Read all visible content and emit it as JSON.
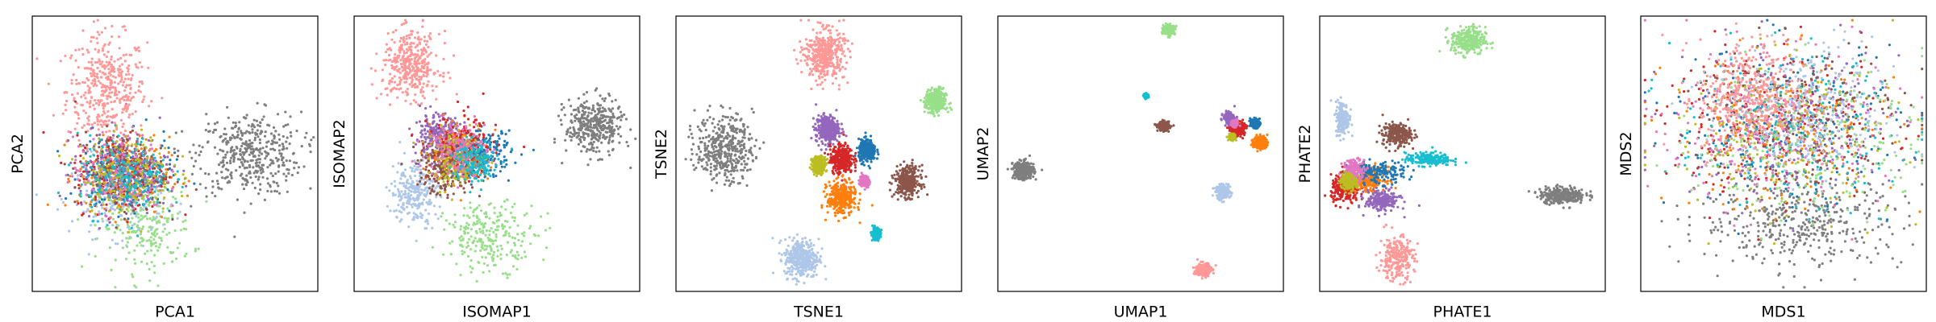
{
  "chart_data": [
    {
      "type": "scatter",
      "xlabel": "PCA1",
      "ylabel": "PCA2",
      "x_ticks": [],
      "y_ticks": [],
      "grid": false,
      "clusters": [
        {
          "color": "#ff9896",
          "center": [
            0.26,
            0.73
          ],
          "spread": [
            0.07,
            0.1
          ],
          "density": 1.0
        },
        {
          "color": "#7f7f7f",
          "center": [
            0.76,
            0.5
          ],
          "spread": [
            0.09,
            0.075
          ],
          "density": 1.0
        },
        {
          "color": "#98df8a",
          "center": [
            0.4,
            0.23
          ],
          "spread": [
            0.08,
            0.08
          ],
          "density": 0.55
        },
        {
          "color": "#aec7e8",
          "center": [
            0.3,
            0.34
          ],
          "spread": [
            0.08,
            0.07
          ],
          "density": 0.5
        },
        {
          "color": "#1f77b4",
          "center": [
            0.33,
            0.42
          ],
          "spread": [
            0.08,
            0.07
          ],
          "density": 0.45
        },
        {
          "color": "#ff7f0e",
          "center": [
            0.32,
            0.42
          ],
          "spread": [
            0.08,
            0.07
          ],
          "density": 0.45
        },
        {
          "color": "#d62728",
          "center": [
            0.31,
            0.43
          ],
          "spread": [
            0.08,
            0.07
          ],
          "density": 0.45
        },
        {
          "color": "#9467bd",
          "center": [
            0.32,
            0.44
          ],
          "spread": [
            0.08,
            0.07
          ],
          "density": 0.45
        },
        {
          "color": "#8c564b",
          "center": [
            0.31,
            0.44
          ],
          "spread": [
            0.08,
            0.07
          ],
          "density": 0.45
        },
        {
          "color": "#e377c2",
          "center": [
            0.3,
            0.43
          ],
          "spread": [
            0.08,
            0.07
          ],
          "density": 0.45
        },
        {
          "color": "#bcbd22",
          "center": [
            0.33,
            0.43
          ],
          "spread": [
            0.08,
            0.07
          ],
          "density": 0.45
        },
        {
          "color": "#17becf",
          "center": [
            0.32,
            0.42
          ],
          "spread": [
            0.08,
            0.07
          ],
          "density": 0.45
        }
      ]
    },
    {
      "type": "scatter",
      "xlabel": "ISOMAP1",
      "ylabel": "ISOMAP2",
      "x_ticks": [],
      "y_ticks": [],
      "grid": false,
      "clusters": [
        {
          "color": "#ff9896",
          "center": [
            0.2,
            0.82
          ],
          "spread": [
            0.05,
            0.06
          ],
          "density": 0.9
        },
        {
          "color": "#7f7f7f",
          "center": [
            0.84,
            0.6
          ],
          "spread": [
            0.05,
            0.05
          ],
          "density": 0.9
        },
        {
          "color": "#98df8a",
          "center": [
            0.48,
            0.2
          ],
          "spread": [
            0.08,
            0.06
          ],
          "density": 0.6
        },
        {
          "color": "#aec7e8",
          "center": [
            0.21,
            0.36
          ],
          "spread": [
            0.04,
            0.06
          ],
          "density": 0.6
        },
        {
          "color": "#9467bd",
          "center": [
            0.29,
            0.56
          ],
          "spread": [
            0.04,
            0.04
          ],
          "density": 0.6
        },
        {
          "color": "#ff7f0e",
          "center": [
            0.37,
            0.5
          ],
          "spread": [
            0.05,
            0.05
          ],
          "density": 0.6
        },
        {
          "color": "#1f77b4",
          "center": [
            0.45,
            0.5
          ],
          "spread": [
            0.05,
            0.04
          ],
          "density": 0.45
        },
        {
          "color": "#d62728",
          "center": [
            0.38,
            0.52
          ],
          "spread": [
            0.06,
            0.06
          ],
          "density": 0.45
        },
        {
          "color": "#8c564b",
          "center": [
            0.32,
            0.45
          ],
          "spread": [
            0.05,
            0.05
          ],
          "density": 0.45
        },
        {
          "color": "#bcbd22",
          "center": [
            0.36,
            0.48
          ],
          "spread": [
            0.05,
            0.05
          ],
          "density": 0.4
        },
        {
          "color": "#e377c2",
          "center": [
            0.36,
            0.52
          ],
          "spread": [
            0.05,
            0.05
          ],
          "density": 0.4
        },
        {
          "color": "#17becf",
          "center": [
            0.42,
            0.47
          ],
          "spread": [
            0.04,
            0.04
          ],
          "density": 0.35
        }
      ]
    },
    {
      "type": "scatter",
      "xlabel": "TSNE1",
      "ylabel": "TSNE2",
      "x_ticks": [],
      "y_ticks": [],
      "grid": false,
      "clusters": [
        {
          "color": "#ff9896",
          "center": [
            0.52,
            0.86
          ],
          "spread": [
            0.035,
            0.045
          ],
          "density": 1.0
        },
        {
          "color": "#7f7f7f",
          "center": [
            0.17,
            0.52
          ],
          "spread": [
            0.05,
            0.06
          ],
          "density": 1.0
        },
        {
          "color": "#98df8a",
          "center": [
            0.91,
            0.69
          ],
          "spread": [
            0.018,
            0.022
          ],
          "density": 0.8
        },
        {
          "color": "#aec7e8",
          "center": [
            0.44,
            0.12
          ],
          "spread": [
            0.03,
            0.035
          ],
          "density": 0.9
        },
        {
          "color": "#9467bd",
          "center": [
            0.53,
            0.59
          ],
          "spread": [
            0.02,
            0.025
          ],
          "density": 0.8
        },
        {
          "color": "#d62728",
          "center": [
            0.58,
            0.48
          ],
          "spread": [
            0.02,
            0.025
          ],
          "density": 0.8
        },
        {
          "color": "#1f77b4",
          "center": [
            0.67,
            0.51
          ],
          "spread": [
            0.015,
            0.02
          ],
          "density": 0.7
        },
        {
          "color": "#8c564b",
          "center": [
            0.81,
            0.4
          ],
          "spread": [
            0.022,
            0.028
          ],
          "density": 0.8
        },
        {
          "color": "#ff7f0e",
          "center": [
            0.58,
            0.34
          ],
          "spread": [
            0.025,
            0.03
          ],
          "density": 0.8
        },
        {
          "color": "#bcbd22",
          "center": [
            0.5,
            0.46
          ],
          "spread": [
            0.012,
            0.015
          ],
          "density": 0.6
        },
        {
          "color": "#e377c2",
          "center": [
            0.66,
            0.4
          ],
          "spread": [
            0.008,
            0.01
          ],
          "density": 0.5
        },
        {
          "color": "#17becf",
          "center": [
            0.7,
            0.21
          ],
          "spread": [
            0.008,
            0.01
          ],
          "density": 0.5
        }
      ]
    },
    {
      "type": "scatter",
      "xlabel": "UMAP1",
      "ylabel": "UMAP2",
      "x_ticks": [],
      "y_ticks": [],
      "grid": false,
      "clusters": [
        {
          "color": "#98df8a",
          "center": [
            0.6,
            0.95
          ],
          "spread": [
            0.01,
            0.008
          ],
          "density": 0.6
        },
        {
          "color": "#17becf",
          "center": [
            0.52,
            0.71
          ],
          "spread": [
            0.004,
            0.004
          ],
          "density": 0.25
        },
        {
          "color": "#8c564b",
          "center": [
            0.58,
            0.6
          ],
          "spread": [
            0.01,
            0.008
          ],
          "density": 0.5
        },
        {
          "color": "#7f7f7f",
          "center": [
            0.09,
            0.44
          ],
          "spread": [
            0.018,
            0.016
          ],
          "density": 0.8
        },
        {
          "color": "#aec7e8",
          "center": [
            0.79,
            0.36
          ],
          "spread": [
            0.012,
            0.012
          ],
          "density": 0.6
        },
        {
          "color": "#ff9896",
          "center": [
            0.72,
            0.08
          ],
          "spread": [
            0.013,
            0.012
          ],
          "density": 0.6
        },
        {
          "color": "#d62728",
          "center": [
            0.84,
            0.59
          ],
          "spread": [
            0.012,
            0.012
          ],
          "density": 0.6
        },
        {
          "color": "#9467bd",
          "center": [
            0.81,
            0.63
          ],
          "spread": [
            0.01,
            0.01
          ],
          "density": 0.4
        },
        {
          "color": "#1f77b4",
          "center": [
            0.9,
            0.61
          ],
          "spread": [
            0.008,
            0.008
          ],
          "density": 0.35
        },
        {
          "color": "#ff7f0e",
          "center": [
            0.92,
            0.54
          ],
          "spread": [
            0.012,
            0.012
          ],
          "density": 0.5
        },
        {
          "color": "#bcbd22",
          "center": [
            0.82,
            0.56
          ],
          "spread": [
            0.006,
            0.006
          ],
          "density": 0.3
        },
        {
          "color": "#e377c2",
          "center": [
            0.83,
            0.61
          ],
          "spread": [
            0.006,
            0.006
          ],
          "density": 0.3
        }
      ]
    },
    {
      "type": "scatter",
      "xlabel": "PHATE1",
      "ylabel": "PHATE2",
      "x_ticks": [],
      "y_ticks": [],
      "grid": false,
      "clusters": [
        {
          "color": "#98df8a",
          "center": [
            0.52,
            0.91
          ],
          "spread": [
            0.03,
            0.025
          ],
          "density": 0.7
        },
        {
          "color": "#aec7e8",
          "center": [
            0.08,
            0.63
          ],
          "spread": [
            0.012,
            0.03
          ],
          "density": 0.5
        },
        {
          "color": "#8c564b",
          "center": [
            0.27,
            0.57
          ],
          "spread": [
            0.025,
            0.02
          ],
          "density": 0.6
        },
        {
          "color": "#17becf",
          "center": [
            0.38,
            0.48
          ],
          "spread": [
            0.04,
            0.012
          ],
          "density": 0.5
        },
        {
          "color": "#7f7f7f",
          "center": [
            0.85,
            0.35
          ],
          "spread": [
            0.04,
            0.015
          ],
          "density": 0.7
        },
        {
          "color": "#d62728",
          "center": [
            0.09,
            0.37
          ],
          "spread": [
            0.025,
            0.025
          ],
          "density": 0.6
        },
        {
          "color": "#ff7f0e",
          "center": [
            0.17,
            0.41
          ],
          "spread": [
            0.03,
            0.02
          ],
          "density": 0.6
        },
        {
          "color": "#9467bd",
          "center": [
            0.22,
            0.33
          ],
          "spread": [
            0.03,
            0.02
          ],
          "density": 0.5
        },
        {
          "color": "#1f77b4",
          "center": [
            0.2,
            0.43
          ],
          "spread": [
            0.05,
            0.02
          ],
          "density": 0.4
        },
        {
          "color": "#e377c2",
          "center": [
            0.12,
            0.44
          ],
          "spread": [
            0.02,
            0.02
          ],
          "density": 0.4
        },
        {
          "color": "#bcbd22",
          "center": [
            0.1,
            0.4
          ],
          "spread": [
            0.015,
            0.015
          ],
          "density": 0.35
        },
        {
          "color": "#ff9896",
          "center": [
            0.27,
            0.12
          ],
          "spread": [
            0.03,
            0.04
          ],
          "density": 0.6
        }
      ]
    },
    {
      "type": "scatter",
      "xlabel": "MDS1",
      "ylabel": "MDS2",
      "x_ticks": [],
      "y_ticks": [],
      "grid": false,
      "clusters": [
        {
          "color": "#7f7f7f",
          "center": [
            0.56,
            0.25
          ],
          "spread": [
            0.18,
            0.08
          ],
          "density": 1.0
        },
        {
          "color": "#1f77b4",
          "center": [
            0.5,
            0.6
          ],
          "spread": [
            0.2,
            0.14
          ],
          "density": 0.5
        },
        {
          "color": "#ff7f0e",
          "center": [
            0.5,
            0.58
          ],
          "spread": [
            0.2,
            0.14
          ],
          "density": 0.5
        },
        {
          "color": "#d62728",
          "center": [
            0.48,
            0.6
          ],
          "spread": [
            0.2,
            0.14
          ],
          "density": 0.5
        },
        {
          "color": "#9467bd",
          "center": [
            0.52,
            0.62
          ],
          "spread": [
            0.2,
            0.14
          ],
          "density": 0.5
        },
        {
          "color": "#8c564b",
          "center": [
            0.54,
            0.64
          ],
          "spread": [
            0.19,
            0.14
          ],
          "density": 0.5
        },
        {
          "color": "#e377c2",
          "center": [
            0.46,
            0.58
          ],
          "spread": [
            0.19,
            0.14
          ],
          "density": 0.45
        },
        {
          "color": "#bcbd22",
          "center": [
            0.5,
            0.56
          ],
          "spread": [
            0.2,
            0.14
          ],
          "density": 0.45
        },
        {
          "color": "#17becf",
          "center": [
            0.52,
            0.58
          ],
          "spread": [
            0.2,
            0.14
          ],
          "density": 0.45
        },
        {
          "color": "#98df8a",
          "center": [
            0.6,
            0.55
          ],
          "spread": [
            0.2,
            0.14
          ],
          "density": 0.5
        },
        {
          "color": "#aec7e8",
          "center": [
            0.58,
            0.66
          ],
          "spread": [
            0.16,
            0.12
          ],
          "density": 0.7
        },
        {
          "color": "#ff9896",
          "center": [
            0.38,
            0.7
          ],
          "spread": [
            0.09,
            0.11
          ],
          "density": 1.0
        }
      ]
    }
  ]
}
